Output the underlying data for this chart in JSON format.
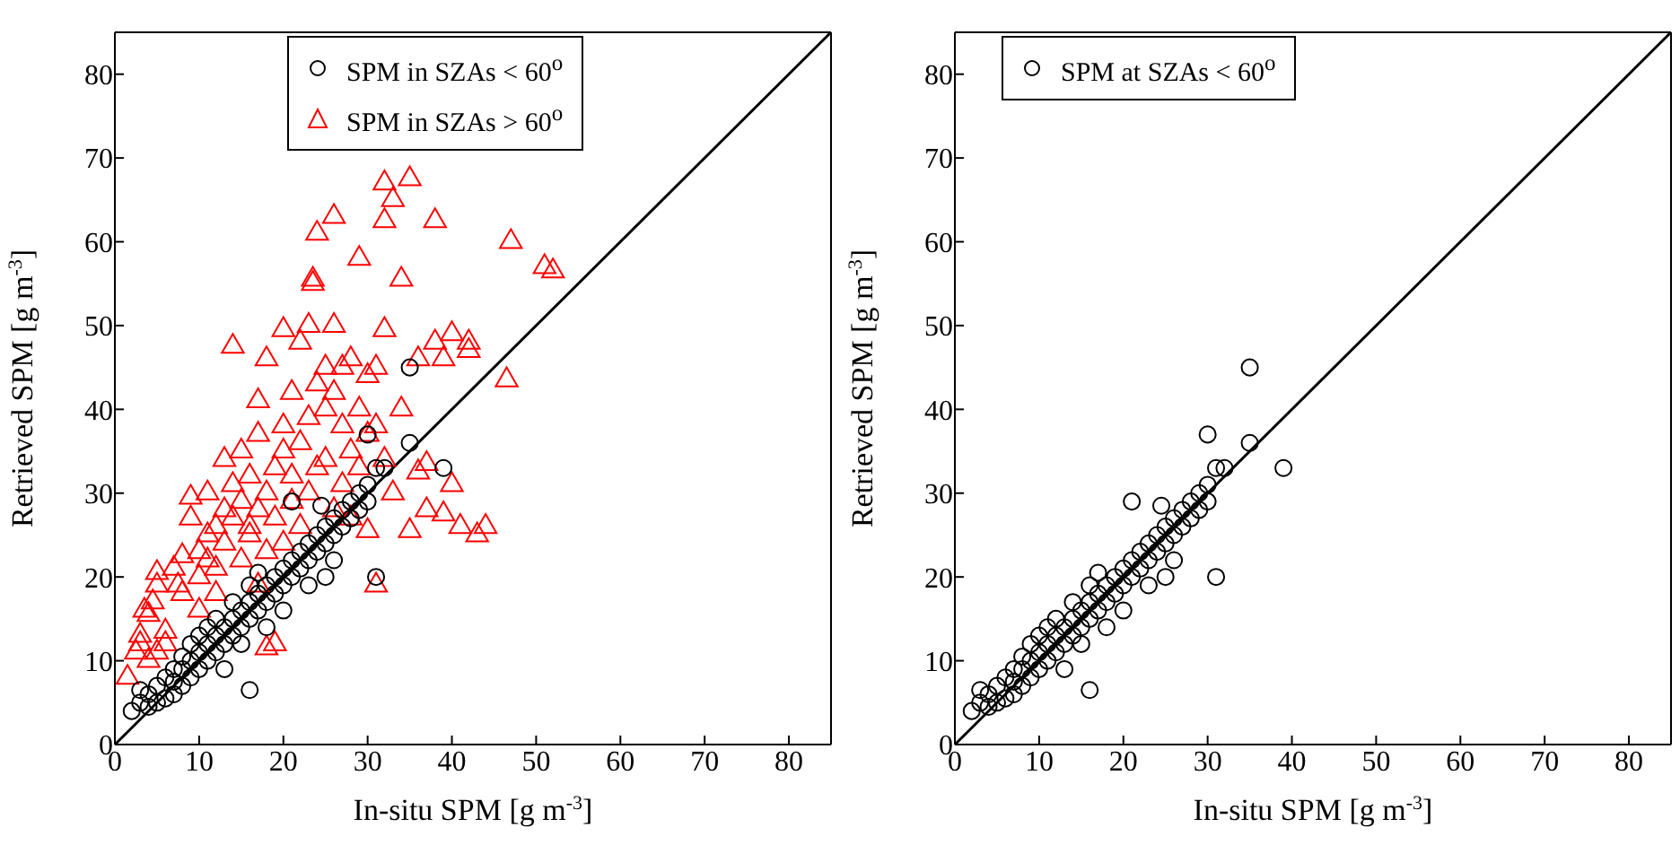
{
  "chart_data": [
    {
      "type": "scatter",
      "xlabel": "In-situ SPM [g m$^{-3}$]",
      "ylabel": "Retrieved SPM [g m$^{-3}$]",
      "xlim": [
        0,
        85
      ],
      "ylim": [
        0,
        85
      ],
      "xticks": [
        0,
        10,
        20,
        30,
        40,
        50,
        60,
        70,
        80
      ],
      "yticks": [
        0,
        10,
        20,
        30,
        40,
        50,
        60,
        70,
        80
      ],
      "legend": "top",
      "series": [
        {
          "name": "SPM in SZAs < 60$^{o}$",
          "color": "#000000",
          "marker": "circle",
          "x": [
            2,
            3,
            3,
            4,
            4,
            5,
            5,
            6,
            6,
            7,
            7,
            7,
            8,
            8,
            8,
            9,
            9,
            9,
            10,
            10,
            10,
            11,
            11,
            11,
            12,
            12,
            12,
            13,
            13,
            13,
            14,
            14,
            14,
            15,
            15,
            15,
            16,
            16,
            16,
            16,
            17,
            17,
            17,
            18,
            18,
            18,
            19,
            19,
            20,
            20,
            20,
            21,
            21,
            21,
            22,
            22,
            23,
            23,
            23,
            24,
            24,
            25,
            25,
            26,
            26,
            26,
            27,
            27,
            28,
            28,
            29,
            29,
            30,
            30,
            30,
            31,
            31,
            32,
            35,
            35,
            39,
            25,
            24.5
          ],
          "values": [
            4,
            5,
            6.5,
            4.5,
            6,
            5,
            7,
            5.5,
            8,
            6,
            7.5,
            9,
            7,
            9,
            10.5,
            8,
            10,
            12,
            9,
            11,
            13,
            10,
            12,
            14,
            11,
            13,
            15,
            12,
            14,
            9,
            13,
            15,
            17,
            14,
            16,
            12,
            15,
            17,
            19,
            6.5,
            16,
            18,
            20.5,
            17,
            19,
            14,
            18,
            20,
            19,
            21,
            16,
            20,
            22,
            29,
            21,
            23,
            22,
            24,
            19,
            23,
            25,
            24,
            26,
            25,
            27,
            22,
            26,
            28,
            27,
            29,
            28,
            30,
            29,
            37,
            31,
            33,
            20,
            33,
            36,
            45,
            33,
            20,
            28.5
          ]
        },
        {
          "name": "SPM in SZAs > 60$^{o}$",
          "color": "#ff0000",
          "marker": "triangle",
          "x": [
            1.5,
            3,
            3.5,
            4.5,
            4,
            3,
            4,
            2.5,
            5,
            6,
            5,
            5,
            6,
            7,
            7.5,
            8,
            8,
            9,
            9,
            10,
            10,
            10,
            11,
            11,
            11,
            12,
            12,
            12,
            13,
            13,
            13,
            14,
            14,
            14,
            15,
            15,
            15,
            16,
            16,
            16,
            17,
            17,
            17,
            17,
            18,
            18,
            18,
            18,
            19,
            19,
            19,
            20,
            20,
            20,
            20,
            21,
            21,
            21,
            22,
            22,
            22,
            23,
            23,
            23,
            23.5,
            23.5,
            24,
            24,
            24,
            25,
            25,
            25,
            26,
            26,
            26,
            26,
            27,
            27,
            27,
            28,
            28,
            28,
            29,
            29,
            29,
            30,
            30,
            30,
            31,
            31,
            31,
            32,
            32,
            32,
            32,
            33,
            33,
            34,
            34,
            35,
            35,
            36,
            36,
            37,
            37,
            38,
            38,
            39,
            39,
            40,
            41,
            42,
            43,
            44,
            46.5,
            47,
            51,
            52,
            40,
            42
          ],
          "values": [
            8,
            13,
            16,
            17,
            15.5,
            12,
            10,
            11,
            11,
            13.5,
            20.5,
            19,
            12,
            21,
            19,
            18,
            22.5,
            27,
            29.5,
            20,
            23,
            16,
            22,
            25,
            30,
            26,
            21,
            18,
            28,
            34,
            24,
            27,
            31,
            47.5,
            22,
            29,
            35,
            25,
            32,
            26,
            28,
            37,
            41,
            19,
            30,
            23,
            46,
            11.5,
            33,
            27,
            12,
            35,
            38,
            24,
            49.5,
            29,
            42,
            32,
            36,
            48,
            26,
            39,
            30,
            50,
            55,
            55.5,
            33,
            43,
            61,
            34,
            40,
            45,
            28,
            42,
            63,
            50,
            31,
            38,
            45,
            35,
            46,
            27,
            33,
            40,
            58,
            37,
            44,
            25.5,
            38,
            45,
            19,
            34,
            49.5,
            62.5,
            67,
            30,
            65,
            40,
            55.5,
            67.5,
            25.5,
            32.5,
            46,
            28,
            33.5,
            62.5,
            48,
            46,
            27.5,
            31,
            26,
            47,
            25,
            26,
            43.5,
            60,
            57,
            56.5,
            49,
            48
          ]
        },
        {
          "type": "line",
          "color": "#000000",
          "x": [
            0,
            85
          ],
          "values": [
            0,
            85
          ]
        }
      ]
    },
    {
      "type": "scatter",
      "xlabel": "In-situ SPM [g m$^{-3}$]",
      "ylabel": "Retrieved SPM [g m$^{-3}$]",
      "xlim": [
        0,
        85
      ],
      "ylim": [
        0,
        85
      ],
      "xticks": [
        0,
        10,
        20,
        30,
        40,
        50,
        60,
        70,
        80
      ],
      "yticks": [
        0,
        10,
        20,
        30,
        40,
        50,
        60,
        70,
        80
      ],
      "legend": "top left",
      "series": [
        {
          "name": "SPM at SZAs < 60$^{o}$",
          "color": "#000000",
          "marker": "circle",
          "x": [
            2,
            3,
            3,
            4,
            4,
            5,
            5,
            6,
            6,
            7,
            7,
            7,
            8,
            8,
            8,
            9,
            9,
            9,
            10,
            10,
            10,
            11,
            11,
            11,
            12,
            12,
            12,
            13,
            13,
            13,
            14,
            14,
            14,
            15,
            15,
            15,
            16,
            16,
            16,
            16,
            17,
            17,
            17,
            18,
            18,
            18,
            19,
            19,
            20,
            20,
            20,
            21,
            21,
            21,
            22,
            22,
            23,
            23,
            23,
            24,
            24,
            25,
            25,
            26,
            26,
            26,
            27,
            27,
            28,
            28,
            29,
            29,
            30,
            30,
            30,
            31,
            31,
            32,
            35,
            35,
            39,
            25,
            24.5
          ],
          "values": [
            4,
            5,
            6.5,
            4.5,
            6,
            5,
            7,
            5.5,
            8,
            6,
            7.5,
            9,
            7,
            9,
            10.5,
            8,
            10,
            12,
            9,
            11,
            13,
            10,
            12,
            14,
            11,
            13,
            15,
            12,
            14,
            9,
            13,
            15,
            17,
            14,
            16,
            12,
            15,
            17,
            19,
            6.5,
            16,
            18,
            20.5,
            17,
            19,
            14,
            18,
            20,
            19,
            21,
            16,
            20,
            22,
            29,
            21,
            23,
            22,
            24,
            19,
            23,
            25,
            24,
            26,
            25,
            27,
            22,
            26,
            28,
            27,
            29,
            28,
            30,
            29,
            37,
            31,
            33,
            20,
            33,
            36,
            45,
            33,
            20,
            28.5
          ]
        },
        {
          "type": "line",
          "color": "#000000",
          "x": [
            0,
            85
          ],
          "values": [
            0,
            85
          ]
        }
      ]
    }
  ]
}
